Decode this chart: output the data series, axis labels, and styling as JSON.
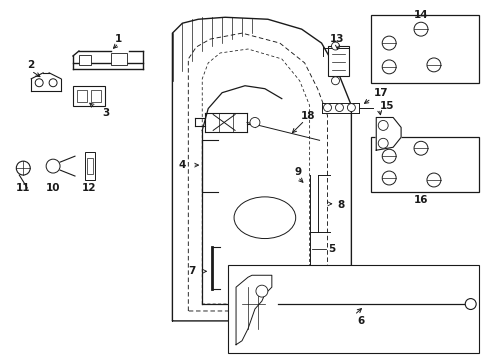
{
  "bg_color": "#ffffff",
  "lc": "#1a1a1a",
  "fig_width": 4.89,
  "fig_height": 3.6,
  "dpi": 100,
  "door_outer": {
    "x": [
      1.72,
      1.72,
      1.82,
      1.98,
      2.25,
      2.68,
      3.02,
      3.22,
      3.38,
      3.52,
      3.52,
      1.72
    ],
    "y": [
      0.38,
      3.28,
      3.38,
      3.42,
      3.44,
      3.42,
      3.32,
      3.18,
      2.9,
      2.55,
      0.38,
      0.38
    ]
  },
  "door_inner1": {
    "x": [
      1.88,
      1.88,
      1.96,
      2.1,
      2.42,
      2.8,
      3.05,
      3.18,
      3.28,
      3.28,
      1.88
    ],
    "y": [
      0.48,
      3.02,
      3.14,
      3.22,
      3.28,
      3.18,
      2.98,
      2.72,
      2.45,
      0.48,
      0.48
    ]
  },
  "door_inner2": {
    "x": [
      2.02,
      2.02,
      2.08,
      2.2,
      2.48,
      2.82,
      3.0,
      3.1,
      3.1,
      2.02
    ],
    "y": [
      0.55,
      2.82,
      2.98,
      3.08,
      3.12,
      3.02,
      2.8,
      2.55,
      0.55,
      0.55
    ]
  },
  "hatch_lines": [
    [
      1.73,
      2.8,
      1.73,
      3.28
    ],
    [
      1.82,
      2.9,
      1.82,
      3.38
    ],
    [
      1.92,
      3.0,
      1.92,
      3.42
    ],
    [
      2.02,
      3.1,
      2.02,
      3.44
    ],
    [
      2.12,
      3.15,
      2.12,
      3.44
    ],
    [
      2.22,
      3.18,
      2.22,
      3.44
    ],
    [
      2.32,
      3.22,
      2.32,
      3.44
    ],
    [
      2.42,
      3.25,
      2.42,
      3.43
    ],
    [
      2.52,
      3.28,
      2.52,
      3.42
    ]
  ]
}
